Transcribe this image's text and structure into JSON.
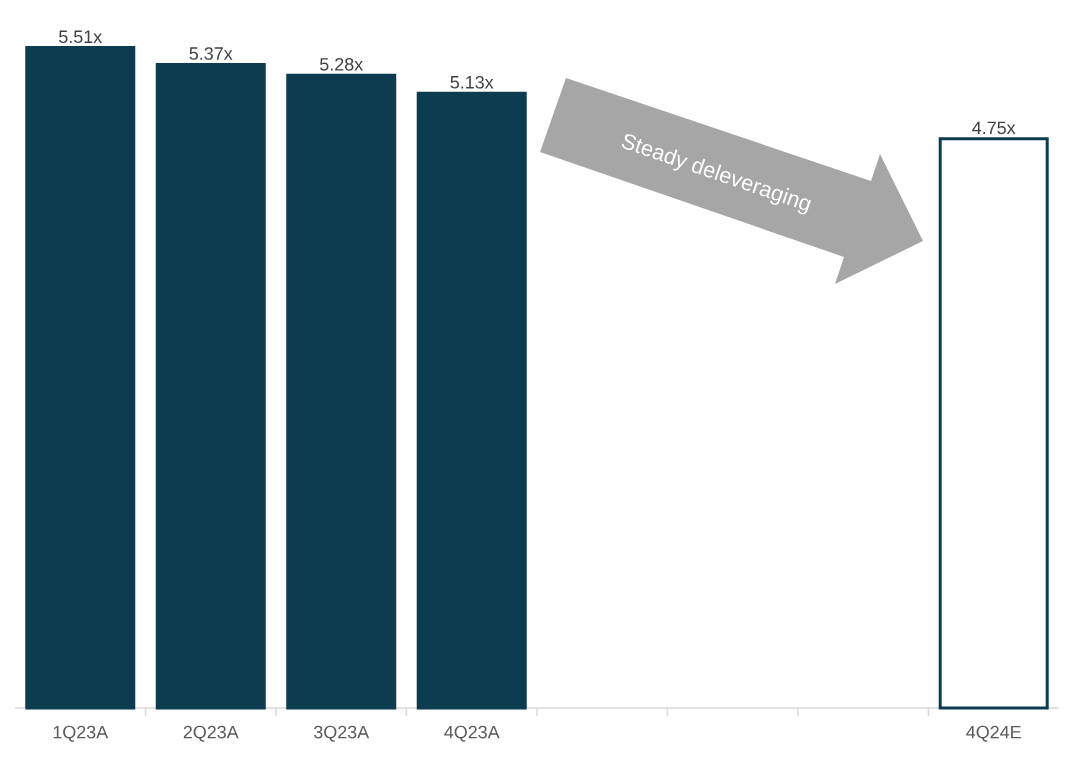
{
  "chart_data": {
    "type": "bar",
    "categories": [
      "1Q23A",
      "2Q23A",
      "3Q23A",
      "4Q23A",
      null,
      null,
      null,
      "4Q24E"
    ],
    "values": [
      5.51,
      5.37,
      5.28,
      5.13,
      null,
      null,
      null,
      4.75
    ],
    "value_labels": [
      "5.51x",
      "5.37x",
      "5.28x",
      "5.13x",
      null,
      null,
      null,
      "4.75x"
    ],
    "color": "#0d3c50",
    "colors": [
      "#0d3c50",
      "#0d3c50",
      "#0d3c50",
      "#0d3c50",
      null,
      null,
      null,
      "#ffffff"
    ],
    "annotations": [
      "Steady deleveraging"
    ]
  }
}
